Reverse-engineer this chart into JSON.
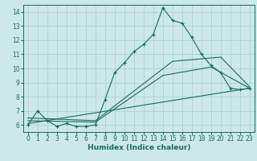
{
  "xlabel": "Humidex (Indice chaleur)",
  "bg_color": "#cce8e8",
  "grid_color": "#aacfcf",
  "line_color": "#1a6b5a",
  "xlim": [
    -0.5,
    23.5
  ],
  "ylim": [
    5.5,
    14.5
  ],
  "xticks": [
    0,
    1,
    2,
    3,
    4,
    5,
    6,
    7,
    8,
    9,
    10,
    11,
    12,
    13,
    14,
    15,
    16,
    17,
    18,
    19,
    20,
    21,
    22,
    23
  ],
  "yticks": [
    6,
    7,
    8,
    9,
    10,
    11,
    12,
    13,
    14
  ],
  "line1_x": [
    0,
    1,
    2,
    3,
    4,
    5,
    6,
    7,
    8,
    9,
    10,
    11,
    12,
    13,
    14,
    15,
    16,
    17,
    18,
    19,
    20,
    21,
    22,
    23
  ],
  "line1_y": [
    6.0,
    7.0,
    6.3,
    5.9,
    6.1,
    5.9,
    5.9,
    6.0,
    7.8,
    9.7,
    10.4,
    11.2,
    11.7,
    12.4,
    14.3,
    13.4,
    13.2,
    12.2,
    11.0,
    10.2,
    9.7,
    8.6,
    8.5,
    8.6
  ],
  "line2_x": [
    0,
    23
  ],
  "line2_y": [
    6.1,
    8.6
  ],
  "line3_x": [
    0,
    7,
    14,
    19,
    23
  ],
  "line3_y": [
    6.3,
    6.2,
    9.5,
    10.1,
    8.6
  ],
  "line4_x": [
    0,
    7,
    15,
    20,
    23
  ],
  "line4_y": [
    6.5,
    6.3,
    10.5,
    10.8,
    8.7
  ]
}
